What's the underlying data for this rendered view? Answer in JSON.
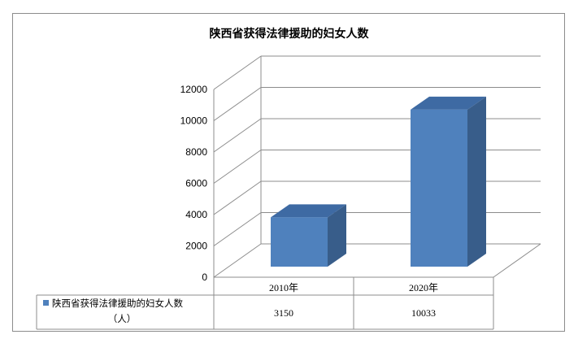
{
  "chart_data": {
    "type": "bar",
    "title": "陕西省获得法律援助的妇女人数",
    "categories": [
      "2010年",
      "2020年"
    ],
    "series": [
      {
        "name": "陕西省获得法律援助的妇女人数（人）",
        "values": [
          3150,
          10033
        ]
      }
    ],
    "legend_line1": "陕西省获得法律援助的妇女人数",
    "legend_line2": "（人）",
    "table_values": [
      "3150",
      "10033"
    ],
    "ylim": [
      0,
      12000
    ],
    "y_ticks": [
      0,
      2000,
      4000,
      6000,
      8000,
      10000,
      12000
    ],
    "grid": true,
    "style": "3d-column",
    "data_table": true,
    "colors": {
      "front": "#4f81bd",
      "side": "#385d8a",
      "top": "#3e6aa3",
      "grid": "#8c8c8c"
    }
  }
}
